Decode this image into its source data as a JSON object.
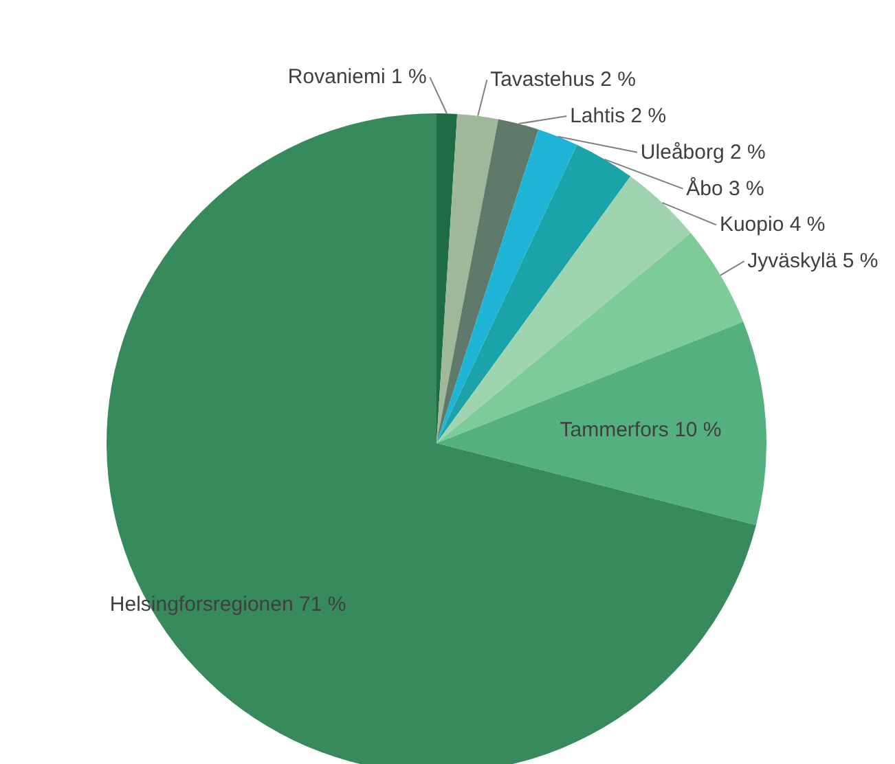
{
  "chart_data": {
    "type": "pie",
    "categories": [
      "Rovaniemi",
      "Tavastehus",
      "Lahtis",
      "Uleåborg",
      "Åbo",
      "Kuopio",
      "Jyväskylä",
      "Tammerfors",
      "Helsingforsregionen"
    ],
    "values": [
      1,
      2,
      2,
      2,
      3,
      4,
      5,
      10,
      71
    ],
    "value_labels": [
      "1 %",
      "2 %",
      "2 %",
      "2 %",
      "3 %",
      "4 %",
      "5 %",
      "10 %",
      "71 %"
    ],
    "colors": [
      "#1e6b46",
      "#9fb89a",
      "#5f7a6b",
      "#1fb5d6",
      "#1aa3a8",
      "#9fd4b0",
      "#7ecb9a",
      "#55b07f",
      "#368a5c"
    ]
  }
}
